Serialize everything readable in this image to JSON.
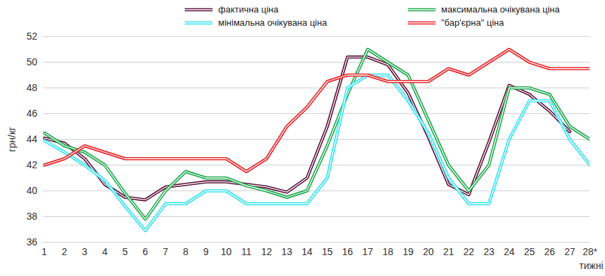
{
  "chart_data": {
    "type": "line",
    "x_label": "тижні",
    "y_label": "грн/кг",
    "categories": [
      "1",
      "2",
      "3",
      "4",
      "5",
      "6",
      "7",
      "8",
      "9",
      "10",
      "11",
      "12",
      "13",
      "14",
      "15",
      "16",
      "17",
      "18",
      "19",
      "20",
      "21",
      "22",
      "23",
      "24",
      "25",
      "26",
      "27",
      "28*"
    ],
    "ylim": [
      36,
      52
    ],
    "yticks": [
      36,
      38,
      40,
      42,
      44,
      46,
      48,
      50,
      52
    ],
    "grid": true,
    "legend": "top",
    "series": [
      {
        "name": "фактична ціна",
        "color": "#5c1038",
        "line_style": "double",
        "values": [
          44.1,
          43.7,
          42.5,
          40.5,
          39.5,
          39.3,
          40.3,
          40.5,
          40.7,
          40.7,
          40.5,
          40.3,
          39.9,
          41.0,
          45.0,
          50.4,
          50.4,
          49.8,
          47.6,
          44.2,
          40.5,
          39.7,
          43.8,
          48.2,
          47.5,
          46.2,
          44.6,
          null
        ]
      },
      {
        "name": "максимальна очікувана ціна",
        "color": "#1ea84e",
        "line_style": "double",
        "values": [
          44.5,
          43.5,
          43.0,
          42.0,
          39.8,
          37.8,
          40.0,
          41.5,
          41.0,
          41.0,
          40.4,
          40.0,
          39.5,
          40.0,
          43.5,
          47.5,
          51.0,
          50.0,
          49.0,
          45.5,
          42.0,
          40.0,
          42.0,
          48.0,
          48.0,
          47.5,
          45.0,
          44.0
        ]
      },
      {
        "name": "мінімальна очікувана ціна",
        "color": "#33e3ef",
        "line_style": "double",
        "values": [
          43.9,
          43.0,
          42.0,
          40.8,
          38.8,
          36.9,
          39.0,
          39.0,
          40.0,
          40.0,
          39.0,
          39.0,
          39.0,
          39.0,
          41.0,
          48.0,
          49.0,
          49.0,
          47.0,
          44.5,
          41.0,
          39.0,
          39.0,
          44.0,
          47.0,
          47.0,
          44.0,
          42.0
        ]
      },
      {
        "name": "\"бар'єрна\" ціна",
        "color": "#e8262a",
        "line_style": "double",
        "values": [
          42.0,
          42.5,
          43.5,
          43.0,
          42.5,
          42.5,
          42.5,
          42.5,
          42.5,
          42.5,
          41.5,
          42.5,
          45.0,
          46.5,
          48.5,
          49.0,
          49.0,
          48.5,
          48.5,
          48.5,
          49.5,
          49.0,
          50.0,
          51.0,
          50.0,
          49.5,
          49.5,
          49.5
        ]
      }
    ]
  }
}
